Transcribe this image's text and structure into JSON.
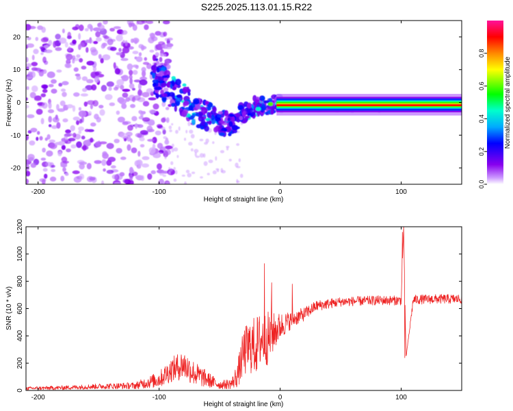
{
  "title": "S225.2025.113.01.15.R22",
  "chart_data": [
    {
      "type": "heatmap",
      "title": "S225.2025.113.01.15.R22",
      "xlabel": "Height of straight line (km)",
      "ylabel": "Frequency (Hz)",
      "xlim": [
        -210,
        150
      ],
      "ylim": [
        -25,
        25
      ],
      "x_ticks": [
        -200,
        -100,
        0,
        100
      ],
      "y_ticks": [
        -20,
        -10,
        0,
        10,
        20
      ],
      "colorbar": {
        "label": "Normalized spectral amplitude",
        "range": [
          0,
          1
        ],
        "ticks": [
          "0.0",
          "0.2",
          "0.4",
          "0.6",
          "0.8"
        ],
        "colormap": "rainbow (purple-blue-cyan-green-yellow-red-magenta)"
      },
      "features": {
        "noise_region_x": [
          -210,
          -100
        ],
        "noise_frequency_spread_hz": [
          -25,
          25
        ],
        "converging_track": [
          [
            -100,
            7
          ],
          [
            -90,
            3
          ],
          [
            -80,
            1
          ],
          [
            -70,
            -3
          ],
          [
            -60,
            -4
          ],
          [
            -50,
            -6
          ],
          [
            -40,
            -7
          ],
          [
            -30,
            -3
          ],
          [
            -20,
            -1
          ],
          [
            -10,
            -1
          ],
          [
            0,
            0
          ]
        ],
        "steady_line_x": [
          0,
          150
        ],
        "steady_line_frequency_hz": -1,
        "peak_amplitude": 1.0
      },
      "grid": false
    },
    {
      "type": "line",
      "xlabel": "Height of straight line (km)",
      "ylabel": "SNR (10 * v/v)",
      "xlim": [
        -210,
        150
      ],
      "ylim": [
        0,
        1200
      ],
      "x_ticks": [
        -200,
        -100,
        0,
        100
      ],
      "y_ticks": [
        0,
        200,
        400,
        600,
        800,
        1000,
        1200
      ],
      "color": "#ee2222",
      "envelope": {
        "x": [
          -210,
          -180,
          -150,
          -120,
          -100,
          -90,
          -80,
          -70,
          -60,
          -50,
          -40,
          -35,
          -30,
          -25,
          -20,
          -15,
          -10,
          -5,
          0,
          10,
          20,
          30,
          50,
          80,
          100,
          102,
          104,
          110,
          130,
          150
        ],
        "y_base": [
          15,
          20,
          30,
          35,
          80,
          150,
          190,
          120,
          80,
          40,
          50,
          120,
          280,
          320,
          330,
          380,
          380,
          430,
          470,
          520,
          560,
          620,
          650,
          660,
          660,
          1200,
          240,
          665,
          670,
          670
        ],
        "y_amp": [
          12,
          15,
          20,
          25,
          60,
          90,
          110,
          90,
          60,
          30,
          40,
          100,
          180,
          200,
          220,
          200,
          200,
          140,
          100,
          60,
          50,
          40,
          35,
          35,
          35,
          0,
          0,
          35,
          35,
          35
        ]
      },
      "spikes": [
        {
          "x": -13,
          "y": 930
        },
        {
          "x": -7,
          "y": 790
        },
        {
          "x": 10,
          "y": 780
        },
        {
          "x": 101,
          "y": 1160
        },
        {
          "x": 102,
          "y": 1200
        },
        {
          "x": 103,
          "y": 240
        }
      ],
      "grid": false
    }
  ]
}
